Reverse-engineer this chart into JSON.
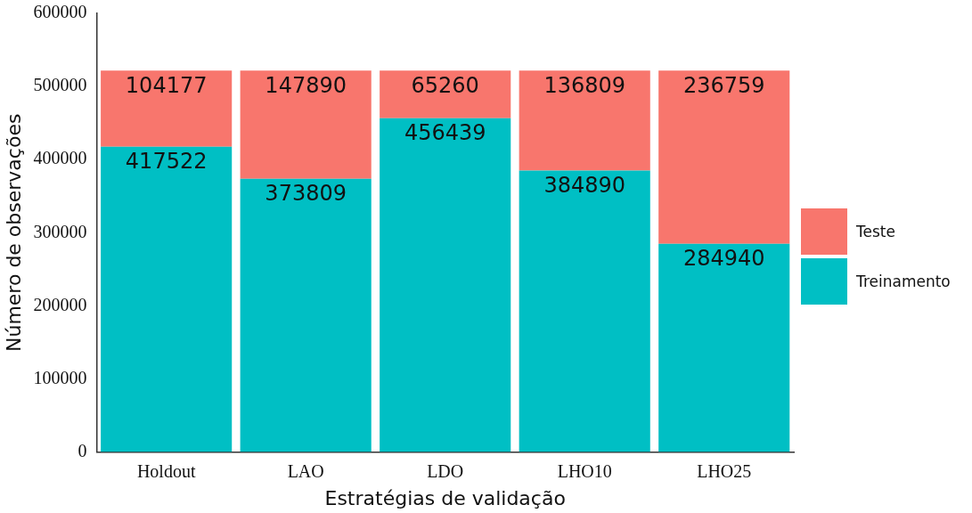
{
  "chart_data": {
    "type": "bar",
    "xlabel": "Estratégias de validação",
    "ylabel": "Número de observações",
    "categories": [
      "Holdout",
      "LAO",
      "LDO",
      "LHO10",
      "LHO25"
    ],
    "series": [
      {
        "name": "Treinamento",
        "color": "#00bfc4",
        "values": [
          417522,
          373809,
          456439,
          384890,
          284940
        ]
      },
      {
        "name": "Teste",
        "color": "#f8766d",
        "values": [
          104177,
          147890,
          65260,
          136809,
          236759
        ]
      }
    ],
    "stacked": true,
    "ylim": [
      0,
      600000
    ],
    "yticks": [
      0,
      100000,
      200000,
      300000,
      400000,
      500000,
      600000
    ],
    "grid": false,
    "legend": "right",
    "data_labels": true
  }
}
